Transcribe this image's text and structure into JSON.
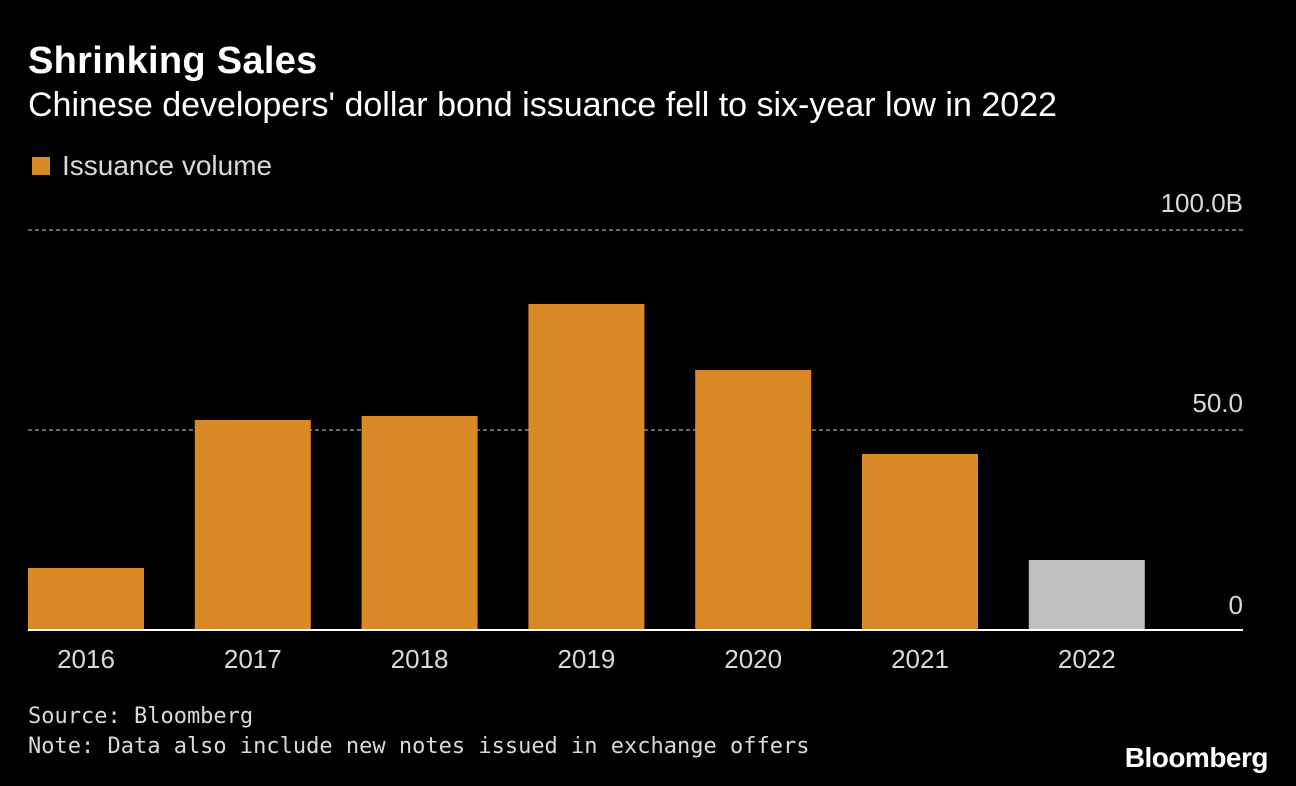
{
  "header": {
    "title": "Shrinking Sales",
    "subtitle": "Chinese developers' dollar bond issuance fell to six-year low in 2022"
  },
  "footer": {
    "source": "Source: Bloomberg",
    "note": "Note: Data also include new notes issued in exchange offers",
    "brand": "Bloomberg"
  },
  "colors": {
    "background": "#000000",
    "bar": "#d98a27",
    "bar_highlight": "#c0c0c0",
    "grid": "#888888",
    "axis": "#ffffff",
    "text": "#ffffff",
    "muted_text": "#d9d9d9"
  },
  "chart_data": {
    "type": "bar",
    "title": "Shrinking Sales",
    "subtitle": "Chinese developers' dollar bond issuance fell to six-year low in 2022",
    "categories": [
      "2016",
      "2017",
      "2018",
      "2019",
      "2020",
      "2021",
      "2022"
    ],
    "series": [
      {
        "name": "Issuance volume",
        "values": [
          15.5,
          52.5,
          53.5,
          81.5,
          65.0,
          44.0,
          17.5
        ]
      }
    ],
    "highlight_category": "2022",
    "ylim": [
      0,
      100
    ],
    "yticks": [
      0,
      50,
      100
    ],
    "ytick_labels": [
      "0",
      "50.0",
      "100.0B"
    ],
    "y_axis_position": "right",
    "grid": "horizontal dashed",
    "legend_position": "top-left",
    "xlabel": "",
    "ylabel": ""
  }
}
